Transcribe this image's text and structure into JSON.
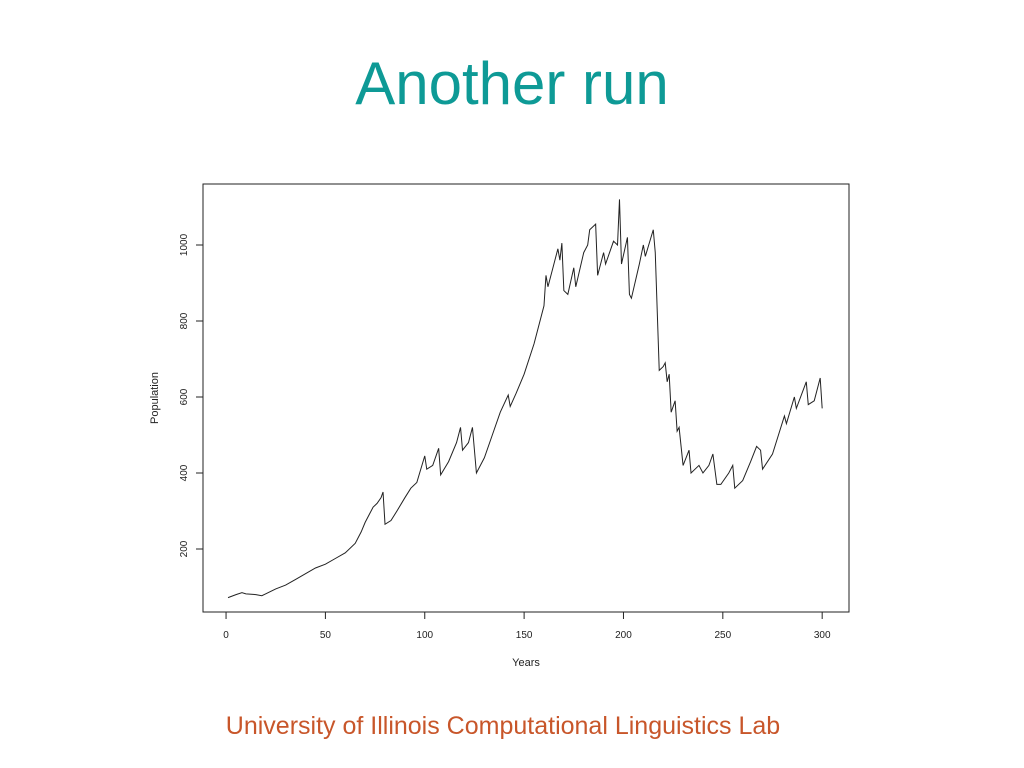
{
  "chart_data": {
    "type": "line",
    "title": "Another run",
    "xlabel": "Years",
    "ylabel": "Population",
    "x": [
      1,
      5,
      8,
      10,
      15,
      18,
      20,
      25,
      30,
      35,
      40,
      45,
      50,
      55,
      60,
      65,
      68,
      70,
      72,
      74,
      76,
      78,
      79,
      80,
      83,
      86,
      90,
      93,
      96,
      100,
      101,
      104,
      107,
      108,
      112,
      116,
      118,
      119,
      122,
      124,
      126,
      130,
      134,
      138,
      142,
      143,
      146,
      150,
      155,
      160,
      161,
      162,
      165,
      167,
      168,
      169,
      170,
      172,
      175,
      176,
      180,
      182,
      183,
      186,
      187,
      190,
      191,
      195,
      197,
      198,
      199,
      202,
      203,
      204,
      208,
      210,
      211,
      215,
      216,
      218,
      220,
      221,
      222,
      223,
      224,
      226,
      227,
      228,
      230,
      233,
      234,
      236,
      238,
      240,
      243,
      245,
      247,
      249,
      253,
      255,
      256,
      260,
      264,
      267,
      269,
      270,
      275,
      278,
      281,
      282,
      286,
      287,
      292,
      293,
      296,
      299,
      300
    ],
    "values": [
      72,
      80,
      85,
      82,
      80,
      77,
      82,
      95,
      105,
      120,
      135,
      150,
      160,
      175,
      190,
      215,
      245,
      270,
      290,
      310,
      320,
      335,
      350,
      265,
      275,
      300,
      335,
      360,
      375,
      445,
      410,
      420,
      465,
      395,
      430,
      480,
      520,
      460,
      480,
      520,
      400,
      440,
      500,
      560,
      605,
      575,
      610,
      660,
      740,
      840,
      920,
      890,
      950,
      990,
      960,
      1005,
      880,
      870,
      940,
      890,
      980,
      1000,
      1040,
      1055,
      920,
      980,
      950,
      1010,
      1000,
      1120,
      950,
      1020,
      870,
      860,
      950,
      1000,
      970,
      1040,
      980,
      670,
      680,
      690,
      640,
      660,
      560,
      590,
      510,
      520,
      420,
      460,
      400,
      410,
      420,
      400,
      420,
      450,
      370,
      370,
      400,
      420,
      360,
      380,
      430,
      470,
      460,
      410,
      450,
      500,
      550,
      530,
      600,
      570,
      640,
      580,
      590,
      650,
      570
    ],
    "color": "#222222",
    "xlim": [
      -11.6,
      313.5
    ],
    "xticks": [
      0,
      50,
      100,
      150,
      200,
      250,
      300
    ],
    "ylim": [
      34.2,
      1160.5
    ],
    "yticks": [
      200,
      400,
      600,
      800,
      1000
    ]
  },
  "footer": "University of Illinois Computational Linguistics Lab"
}
